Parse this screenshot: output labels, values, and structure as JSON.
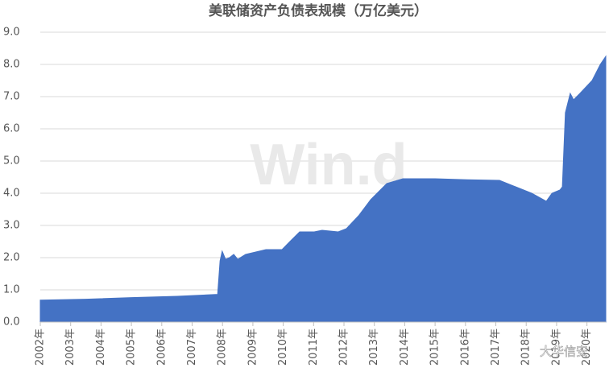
{
  "chart_data": {
    "type": "area",
    "title": "美联储资产负债表规模（万亿美元）",
    "watermark": "Win.d",
    "logo_text": "大华信安",
    "color": "#4472c4",
    "grid": true,
    "x": [
      2002.0,
      2003.5,
      2005.0,
      2006.5,
      2007.84,
      2007.92,
      2007.99,
      2008.1,
      2008.23,
      2008.37,
      2008.5,
      2008.76,
      2009.43,
      2009.96,
      2010.22,
      2010.54,
      2011.02,
      2011.28,
      2011.81,
      2012.08,
      2012.48,
      2012.88,
      2013.41,
      2013.94,
      2015.0,
      2016.06,
      2017.12,
      2017.65,
      2018.18,
      2018.66,
      2018.85,
      2019.11,
      2019.19,
      2019.29,
      2019.45,
      2019.56,
      2019.77,
      2020.17,
      2020.44,
      2020.62
    ],
    "values": [
      0.68,
      0.71,
      0.76,
      0.8,
      0.86,
      1.9,
      2.2,
      1.95,
      2.0,
      2.1,
      1.95,
      2.1,
      2.25,
      2.25,
      2.5,
      2.8,
      2.8,
      2.85,
      2.8,
      2.9,
      3.3,
      3.8,
      4.3,
      4.45,
      4.45,
      4.42,
      4.4,
      4.2,
      4.0,
      3.75,
      4.0,
      4.1,
      4.2,
      6.5,
      7.1,
      6.9,
      7.1,
      7.5,
      8.0,
      8.25
    ],
    "xlim": [
      2002,
      2020.62
    ],
    "ylim": [
      0,
      9
    ],
    "xticks": [
      {
        "value": 2002,
        "label": "2002年"
      },
      {
        "value": 2003,
        "label": "2003年"
      },
      {
        "value": 2004,
        "label": "2004年"
      },
      {
        "value": 2005,
        "label": "2005年"
      },
      {
        "value": 2006,
        "label": "2006年"
      },
      {
        "value": 2007,
        "label": "2007年"
      },
      {
        "value": 2008,
        "label": "2008年"
      },
      {
        "value": 2009,
        "label": "2009年"
      },
      {
        "value": 2010,
        "label": "2010年"
      },
      {
        "value": 2011,
        "label": "2011年"
      },
      {
        "value": 2012,
        "label": "2012年"
      },
      {
        "value": 2013,
        "label": "2013年"
      },
      {
        "value": 2014,
        "label": "2014年"
      },
      {
        "value": 2015,
        "label": "2015年"
      },
      {
        "value": 2016,
        "label": "2016年"
      },
      {
        "value": 2017,
        "label": "2017年"
      },
      {
        "value": 2018,
        "label": "2018年"
      },
      {
        "value": 2019,
        "label": "2019年"
      },
      {
        "value": 2020,
        "label": "2020年"
      }
    ],
    "yticks": [
      {
        "value": 0,
        "label": "0.0"
      },
      {
        "value": 1,
        "label": "1.0"
      },
      {
        "value": 2,
        "label": "2.0"
      },
      {
        "value": 3,
        "label": "3.0"
      },
      {
        "value": 4,
        "label": "4.0"
      },
      {
        "value": 5,
        "label": "5.0"
      },
      {
        "value": 6,
        "label": "6.0"
      },
      {
        "value": 7,
        "label": "7.0"
      },
      {
        "value": 8,
        "label": "8.0"
      },
      {
        "value": 9,
        "label": "9.0"
      }
    ]
  }
}
